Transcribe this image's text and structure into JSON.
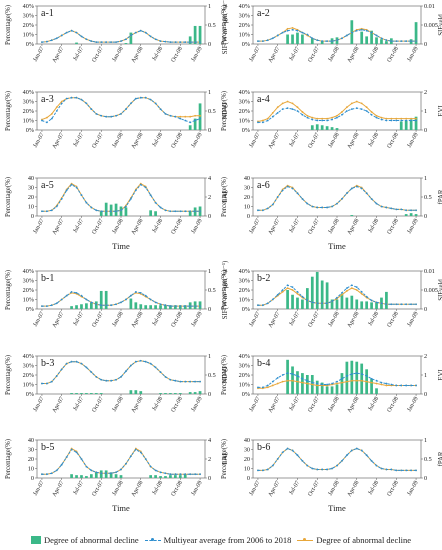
{
  "colors": {
    "bar": "#3bb888",
    "multiyear": "#2f8fcf",
    "abnormal": "#e8a73a"
  },
  "x_ticks": [
    "Jan-07",
    "Apr-07",
    "Jul-07",
    "Oct-07",
    "Jan-08",
    "Apr-08",
    "Jul-08",
    "Oct-08",
    "Jan-09"
  ],
  "legend": {
    "bar": "Degree of abnormal decline",
    "multiyear": "Multiyear average from 2006 to 2018",
    "abnormal": "Degree of abnormal decline"
  },
  "chart_data": [
    {
      "type": "bar+line",
      "panel": "a-1",
      "xlabel": "",
      "ylabel": "Percentage(%)",
      "y2label": "SIF(W m⁻²µm⁻¹sr⁻¹)",
      "ylim": [
        0,
        40
      ],
      "yticks": [
        "0%",
        "10%",
        "20%",
        "30%",
        "40%"
      ],
      "y2lim": [
        0,
        1
      ],
      "y2ticks": [
        "0",
        "0.5",
        "1"
      ],
      "bars": [
        0,
        0,
        0,
        0,
        0,
        0,
        0,
        1.5,
        0,
        0,
        0,
        0,
        0,
        0,
        0,
        0,
        0,
        1,
        12,
        0,
        0,
        0,
        0,
        0,
        0,
        0,
        0,
        0,
        0,
        0,
        8,
        19,
        19
      ],
      "multiyear": [
        2,
        2.5,
        4,
        6,
        9,
        12,
        14,
        12,
        8,
        5,
        3,
        2,
        2,
        2,
        2,
        2,
        3,
        5,
        9,
        12,
        14,
        12,
        8,
        5,
        3,
        2.5,
        2,
        2,
        2,
        2,
        2,
        2,
        2
      ],
      "abnormal": [
        2,
        2.5,
        4,
        6,
        9,
        12,
        14,
        12,
        8,
        5,
        3,
        2,
        2,
        2,
        2,
        2,
        3,
        5,
        9,
        12,
        14,
        12,
        8,
        5,
        3,
        2.5,
        2,
        2,
        2,
        2,
        2,
        2,
        2
      ]
    },
    {
      "type": "bar+line",
      "panel": "a-2",
      "xlabel": "",
      "ylabel": "Percentage(%)",
      "y2label": "SIFyeld",
      "ylim": [
        0,
        40
      ],
      "yticks": [
        "0%",
        "10%",
        "20%",
        "30%",
        "40%"
      ],
      "y2lim": [
        0,
        0.01
      ],
      "y2ticks": [
        "0",
        "0.005",
        "0.01"
      ],
      "bars": [
        0,
        0,
        0,
        0,
        0,
        0,
        10,
        10,
        12,
        10,
        0,
        6,
        0,
        3,
        0,
        6,
        7,
        0,
        0,
        25,
        0,
        13,
        8,
        14,
        7,
        5,
        3,
        6,
        0,
        0,
        0,
        5,
        23
      ],
      "multiyear": [
        3,
        3,
        4,
        6,
        9,
        12,
        14,
        15,
        14,
        12,
        10,
        6,
        4,
        3,
        3,
        3,
        4,
        6,
        9,
        12,
        14,
        15,
        14,
        12,
        9,
        6,
        4,
        3,
        3,
        3,
        3,
        3,
        3
      ],
      "abnormal": [
        3,
        3,
        4,
        6,
        9,
        12,
        16,
        17,
        15,
        12,
        9,
        6,
        4,
        3,
        3,
        3,
        4,
        6,
        9,
        12,
        15,
        16,
        15,
        12,
        9,
        6,
        4,
        3,
        3,
        3,
        3,
        3,
        3
      ]
    },
    {
      "type": "bar+line",
      "panel": "a-3",
      "xlabel": "",
      "ylabel": "Percentage(%)",
      "y2label": "NDVI",
      "ylim": [
        0,
        40
      ],
      "yticks": [
        "0%",
        "10%",
        "20%",
        "30%",
        "40%"
      ],
      "y2lim": [
        0,
        1
      ],
      "y2ticks": [
        "0",
        "0.5",
        "1"
      ],
      "bars": [
        0,
        0,
        0,
        0,
        0,
        0,
        0,
        0,
        0,
        0,
        0,
        0,
        0,
        0,
        0,
        0,
        0,
        0,
        0,
        0,
        0,
        0,
        0,
        0,
        0,
        0,
        0,
        0,
        0,
        0,
        5,
        12,
        28
      ],
      "multiyear": [
        10,
        8,
        12,
        20,
        28,
        33,
        34,
        34,
        32,
        28,
        22,
        17,
        15,
        14,
        14,
        15,
        17,
        22,
        28,
        33,
        34,
        34,
        32,
        28,
        22,
        17,
        15,
        14,
        12,
        10,
        8,
        10,
        12
      ],
      "abnormal": [
        11,
        13,
        17,
        24,
        30,
        33,
        34,
        34,
        32,
        28,
        22,
        17,
        15,
        14,
        14,
        15,
        17,
        22,
        28,
        33,
        34,
        34,
        32,
        28,
        22,
        17,
        15,
        14,
        14,
        14,
        14,
        15,
        15
      ]
    },
    {
      "type": "bar+line",
      "panel": "a-4",
      "xlabel": "",
      "ylabel": "Percentage(%)",
      "y2label": "EVI",
      "ylim": [
        0,
        40
      ],
      "yticks": [
        "0%",
        "10%",
        "20%",
        "30%",
        "40%"
      ],
      "y2lim": [
        0,
        2
      ],
      "y2ticks": [
        "0",
        "1",
        "2"
      ],
      "bars": [
        0,
        0,
        0,
        0,
        0,
        0,
        0,
        0,
        0,
        0,
        0,
        5,
        6,
        5,
        4,
        3,
        2,
        0,
        0,
        0,
        0,
        0,
        0,
        0,
        0,
        0,
        0,
        0,
        0,
        9,
        10,
        11,
        14
      ],
      "multiyear": [
        8,
        8,
        10,
        14,
        18,
        22,
        23,
        22,
        20,
        16,
        13,
        11,
        10,
        10,
        10,
        11,
        13,
        16,
        20,
        22,
        23,
        22,
        20,
        16,
        13,
        11,
        10,
        10,
        10,
        10,
        10,
        10,
        10
      ],
      "abnormal": [
        9,
        10,
        12,
        18,
        24,
        28,
        30,
        28,
        24,
        19,
        15,
        13,
        12,
        12,
        12,
        13,
        15,
        19,
        24,
        28,
        30,
        28,
        24,
        19,
        15,
        13,
        12,
        12,
        12,
        12,
        12,
        12,
        12
      ]
    },
    {
      "type": "bar+line",
      "panel": "a-5",
      "xlabel": "Time",
      "ylabel": "Percentage(%)",
      "y2label": "LAI",
      "ylim": [
        0,
        40
      ],
      "yticks": [
        "0",
        "10",
        "20",
        "30",
        "40"
      ],
      "y2lim": [
        0,
        4
      ],
      "y2ticks": [
        "0",
        "2",
        "4"
      ],
      "bars": [
        0,
        0,
        0,
        0,
        0,
        0,
        0,
        0,
        0,
        0,
        0,
        0,
        5,
        14,
        12,
        13,
        10,
        9,
        0,
        0,
        0,
        0,
        6,
        5,
        0,
        0,
        0,
        0,
        0,
        0,
        5,
        9,
        10
      ],
      "multiyear": [
        5,
        5,
        6,
        10,
        18,
        27,
        33,
        30,
        22,
        14,
        9,
        6,
        5,
        5,
        5,
        5,
        6,
        10,
        18,
        27,
        33,
        30,
        22,
        14,
        9,
        6,
        5,
        5,
        5,
        5,
        5,
        5,
        5
      ],
      "abnormal": [
        5,
        5,
        6,
        11,
        19,
        28,
        34,
        31,
        22,
        14,
        9,
        6,
        5,
        5,
        5,
        5,
        6,
        11,
        19,
        28,
        34,
        31,
        22,
        14,
        9,
        6,
        5,
        5,
        5,
        5,
        5,
        5,
        5
      ]
    },
    {
      "type": "bar+line",
      "panel": "a-6",
      "xlabel": "Time",
      "ylabel": "Percentage(%)",
      "y2label": "fPAR",
      "ylim": [
        0,
        40
      ],
      "yticks": [
        "0",
        "10",
        "20",
        "30",
        "40"
      ],
      "y2lim": [
        0,
        1
      ],
      "y2ticks": [
        "0",
        "0.5",
        "1"
      ],
      "bars": [
        0,
        0,
        0,
        0,
        0,
        0,
        0,
        0,
        0,
        0,
        0,
        0,
        0,
        0,
        0,
        0,
        0,
        0,
        0,
        1,
        0,
        0,
        0,
        0,
        0,
        0,
        0,
        0,
        0,
        0,
        2,
        3,
        2
      ],
      "multiyear": [
        6,
        6,
        8,
        12,
        20,
        27,
        31,
        29,
        24,
        18,
        13,
        10,
        9,
        9,
        9,
        10,
        13,
        18,
        24,
        29,
        31,
        29,
        24,
        18,
        13,
        10,
        9,
        8,
        7,
        7,
        6,
        6,
        6
      ],
      "abnormal": [
        6,
        6,
        8,
        12,
        20,
        28,
        32,
        30,
        24,
        18,
        13,
        10,
        9,
        9,
        9,
        10,
        13,
        18,
        24,
        29,
        32,
        30,
        24,
        18,
        13,
        10,
        9,
        8,
        7,
        7,
        6,
        6,
        6
      ]
    },
    {
      "type": "bar+line",
      "panel": "b-1",
      "xlabel": "",
      "ylabel": "Percentage(%)",
      "y2label": "SIF(W m⁻²µm⁻¹sr⁻¹)",
      "ylim": [
        0,
        40
      ],
      "yticks": [
        "0%",
        "10%",
        "20%",
        "30%",
        "40%"
      ],
      "y2lim": [
        0,
        1
      ],
      "y2ticks": [
        "0",
        "0.5",
        "1"
      ],
      "bars": [
        0,
        0,
        0,
        0,
        0,
        0,
        3,
        4,
        5,
        6,
        7,
        8,
        19,
        19,
        0,
        0,
        0,
        0,
        11,
        7,
        5,
        4,
        4,
        4,
        4,
        4,
        4,
        4,
        4,
        4,
        7,
        8,
        8
      ],
      "multiyear": [
        3,
        3,
        4,
        6,
        10,
        14,
        18,
        17,
        14,
        10,
        7,
        5,
        4,
        4,
        4,
        5,
        7,
        10,
        14,
        18,
        17,
        14,
        10,
        7,
        5,
        4,
        3,
        3,
        3,
        3,
        3,
        3,
        3
      ],
      "abnormal": [
        3,
        3,
        4,
        6,
        10,
        14,
        17,
        16,
        13,
        10,
        7,
        5,
        4,
        4,
        4,
        5,
        7,
        10,
        14,
        17,
        16,
        13,
        10,
        7,
        5,
        4,
        3,
        3,
        3,
        3,
        3,
        3,
        3
      ]
    },
    {
      "type": "bar+line",
      "panel": "b-2",
      "xlabel": "",
      "ylabel": "Percentage(%)",
      "y2label": "SIFyeld",
      "ylim": [
        0,
        40
      ],
      "yticks": [
        "0%",
        "10%",
        "20%",
        "30%",
        "40%"
      ],
      "y2lim": [
        0,
        0.01
      ],
      "y2ticks": [
        "0",
        "0.005",
        "0.01"
      ],
      "bars": [
        0,
        0,
        0,
        0,
        0,
        0,
        20,
        15,
        12,
        10,
        22,
        34,
        39,
        30,
        28,
        10,
        10,
        16,
        12,
        14,
        10,
        8,
        8,
        7,
        7,
        12,
        18,
        0,
        0,
        0,
        0,
        0,
        0
      ],
      "multiyear": [
        4,
        4,
        6,
        10,
        15,
        20,
        25,
        23,
        18,
        13,
        9,
        7,
        6,
        6,
        6,
        8,
        12,
        17,
        22,
        25,
        23,
        18,
        13,
        9,
        7,
        6,
        5,
        5,
        5,
        5,
        5,
        5,
        5
      ],
      "abnormal": [
        4,
        4,
        6,
        10,
        14,
        18,
        22,
        20,
        16,
        12,
        9,
        7,
        6,
        6,
        6,
        8,
        11,
        15,
        19,
        22,
        20,
        16,
        12,
        9,
        7,
        6,
        5,
        5,
        5,
        5,
        5,
        5,
        5
      ]
    },
    {
      "type": "bar+line",
      "panel": "b-3",
      "xlabel": "",
      "ylabel": "Percentage(%)",
      "y2label": "NDVI",
      "ylim": [
        0,
        40
      ],
      "yticks": [
        "0%",
        "10%",
        "20%",
        "30%",
        "40%"
      ],
      "y2lim": [
        0,
        1
      ],
      "y2ticks": [
        "0",
        "0.5",
        "1"
      ],
      "bars": [
        0,
        0,
        0,
        0,
        0,
        0,
        1,
        1,
        1,
        1,
        1,
        1,
        1,
        0,
        0,
        0,
        0,
        0,
        4,
        4,
        3,
        0,
        0,
        0,
        1,
        1,
        1,
        1,
        1,
        0,
        2,
        2,
        3
      ],
      "multiyear": [
        11,
        11,
        13,
        19,
        26,
        32,
        34,
        34,
        32,
        28,
        23,
        18,
        15,
        14,
        14,
        15,
        18,
        24,
        30,
        34,
        35,
        34,
        32,
        28,
        23,
        18,
        15,
        14,
        13,
        13,
        13,
        13,
        13
      ],
      "abnormal": [
        11,
        11,
        13,
        19,
        26,
        32,
        34,
        34,
        32,
        28,
        23,
        18,
        15,
        14,
        14,
        15,
        18,
        24,
        30,
        34,
        35,
        34,
        32,
        28,
        23,
        18,
        15,
        14,
        13,
        13,
        13,
        13,
        13
      ]
    },
    {
      "type": "bar+line",
      "panel": "b-4",
      "xlabel": "",
      "ylabel": "Percentage(%)",
      "y2label": "EVI",
      "ylim": [
        0,
        40
      ],
      "yticks": [
        "0%",
        "10%",
        "20%",
        "30%",
        "40%"
      ],
      "y2lim": [
        0,
        2
      ],
      "y2ticks": [
        "0",
        "1",
        "2"
      ],
      "bars": [
        0,
        0,
        0,
        0,
        0,
        0,
        36,
        29,
        24,
        22,
        20,
        20,
        14,
        12,
        8,
        8,
        10,
        22,
        34,
        35,
        34,
        32,
        26,
        16,
        6,
        0,
        0,
        0,
        0,
        0,
        0,
        0,
        0
      ],
      "multiyear": [
        7,
        7,
        9,
        13,
        17,
        20,
        22,
        21,
        19,
        16,
        14,
        12,
        11,
        10,
        10,
        11,
        13,
        16,
        19,
        21,
        22,
        21,
        19,
        16,
        14,
        12,
        11,
        10,
        9,
        9,
        9,
        9,
        9
      ],
      "abnormal": [
        6,
        6,
        7,
        9,
        11,
        13,
        14,
        14,
        13,
        12,
        11,
        10,
        9,
        9,
        9,
        10,
        11,
        12,
        13,
        14,
        14,
        14,
        13,
        12,
        11,
        10,
        9,
        9,
        9,
        9,
        9,
        9,
        9
      ]
    },
    {
      "type": "bar+line",
      "panel": "b-5",
      "xlabel": "Time",
      "ylabel": "Percentage(%)",
      "y2label": "LAI",
      "ylim": [
        0,
        40
      ],
      "yticks": [
        "0",
        "10",
        "20",
        "30",
        "40"
      ],
      "y2lim": [
        0,
        4
      ],
      "y2ticks": [
        "0",
        "2",
        "4"
      ],
      "bars": [
        0,
        0,
        0,
        0,
        0,
        0,
        4,
        3,
        3,
        2,
        4,
        6,
        8,
        8,
        6,
        4,
        3,
        0,
        0,
        0,
        0,
        0,
        3,
        3,
        2,
        2,
        3,
        3,
        3,
        4,
        0,
        0,
        0
      ],
      "multiyear": [
        4,
        4,
        5,
        8,
        14,
        22,
        30,
        27,
        20,
        12,
        8,
        6,
        5,
        5,
        5,
        6,
        9,
        15,
        23,
        30,
        27,
        20,
        12,
        8,
        6,
        5,
        4,
        4,
        4,
        4,
        4,
        4,
        4
      ],
      "abnormal": [
        4,
        4,
        5,
        8,
        14,
        22,
        31,
        28,
        20,
        12,
        8,
        6,
        5,
        5,
        5,
        6,
        9,
        15,
        23,
        31,
        28,
        20,
        12,
        8,
        6,
        5,
        4,
        4,
        4,
        4,
        4,
        4,
        4
      ]
    },
    {
      "type": "bar+line",
      "panel": "b-6",
      "xlabel": "Time",
      "ylabel": "Percentage(%)",
      "y2label": "fPAR",
      "ylim": [
        0,
        40
      ],
      "yticks": [
        "0",
        "10",
        "20",
        "30",
        "40"
      ],
      "y2lim": [
        0,
        1
      ],
      "y2ticks": [
        "0",
        "0.5",
        "1"
      ],
      "bars": [
        0,
        0,
        0,
        0,
        0,
        0,
        0,
        0,
        0,
        0,
        0,
        0,
        0,
        0,
        0,
        0,
        0,
        0,
        0,
        0,
        0,
        0,
        0,
        0,
        0,
        0,
        0,
        0,
        0,
        0,
        0,
        0,
        0
      ],
      "multiyear": [
        8,
        8,
        9,
        13,
        20,
        27,
        31,
        29,
        24,
        18,
        13,
        10,
        9,
        9,
        9,
        10,
        13,
        18,
        24,
        29,
        31,
        29,
        24,
        18,
        13,
        10,
        9,
        9,
        8,
        8,
        8,
        8,
        8
      ],
      "abnormal": [
        8,
        8,
        9,
        13,
        20,
        27,
        31,
        29,
        24,
        18,
        13,
        10,
        9,
        9,
        9,
        10,
        13,
        18,
        24,
        29,
        31,
        29,
        24,
        18,
        13,
        10,
        9,
        9,
        8,
        8,
        8,
        8,
        8
      ]
    }
  ]
}
